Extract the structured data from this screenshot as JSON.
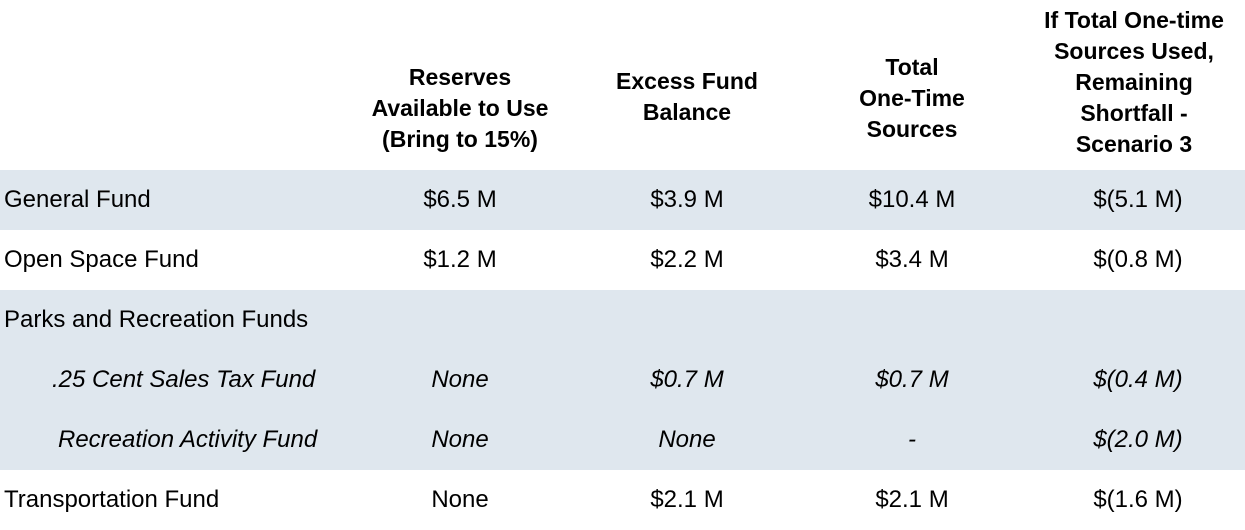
{
  "columns": [
    "Reserves\nAvailable to Use\n(Bring to 15%)",
    "Excess Fund\nBalance",
    "Total\nOne-Time\nSources",
    "If Total One-time\nSources Used,\nRemaining\nShortfall -\nScenario 3"
  ],
  "rows": [
    {
      "label": "General Fund",
      "values": [
        "$6.5 M",
        "$3.9 M",
        "$10.4 M",
        "$(5.1 M)"
      ]
    },
    {
      "label": "Open Space Fund",
      "values": [
        "$1.2 M",
        "$2.2 M",
        "$3.4 M",
        "$(0.8 M)"
      ]
    },
    {
      "label": "Parks and Recreation Funds",
      "values": [
        "",
        "",
        "",
        ""
      ]
    },
    {
      "label": ".25 Cent Sales Tax Fund",
      "values": [
        "None",
        "$0.7 M",
        "$0.7 M",
        "$(0.4 M)"
      ]
    },
    {
      "label": "Recreation Activity Fund",
      "values": [
        "None",
        "None",
        "-",
        "$(2.0 M)"
      ]
    },
    {
      "label": "Transportation Fund",
      "values": [
        "None",
        "$2.1 M",
        "$2.1 M",
        "$(1.6 M)"
      ]
    }
  ],
  "colors": {
    "shaded_row": "#dfe7ee",
    "text": "#000000"
  }
}
